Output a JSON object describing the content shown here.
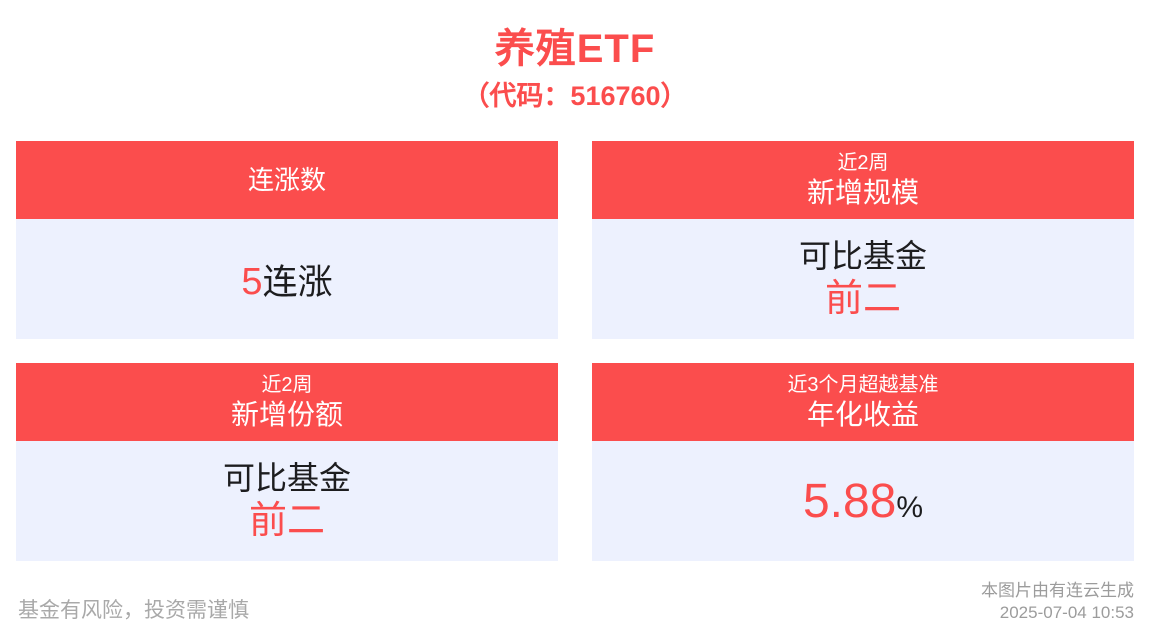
{
  "header": {
    "title": "养殖ETF",
    "subtitle": "（代码：516760）"
  },
  "cards": {
    "streak": {
      "header": "连涨数",
      "value": "5",
      "unit": "连涨"
    },
    "scale": {
      "header_small": "近2周",
      "header_main": "新增规模",
      "line1": "可比基金",
      "line2": "前二"
    },
    "shares": {
      "header_small": "近2周",
      "header_main": "新增份额",
      "line1": "可比基金",
      "line2": "前二"
    },
    "yield": {
      "header_small": "近3个月超越基准",
      "header_main": "年化收益",
      "value": "5.88",
      "unit": "%"
    }
  },
  "footer": {
    "disclaimer": "基金有风险，投资需谨慎",
    "credit_line1": "本图片由有连云生成",
    "credit_line2": "2025-07-04 10:53"
  },
  "colors": {
    "accent_red": "#fb4d4d",
    "card_body_bg": "#edf1fe",
    "text_dark": "#1d1d1f",
    "footer_gray": "#a9a9a9",
    "header_text": "#ffffff"
  }
}
